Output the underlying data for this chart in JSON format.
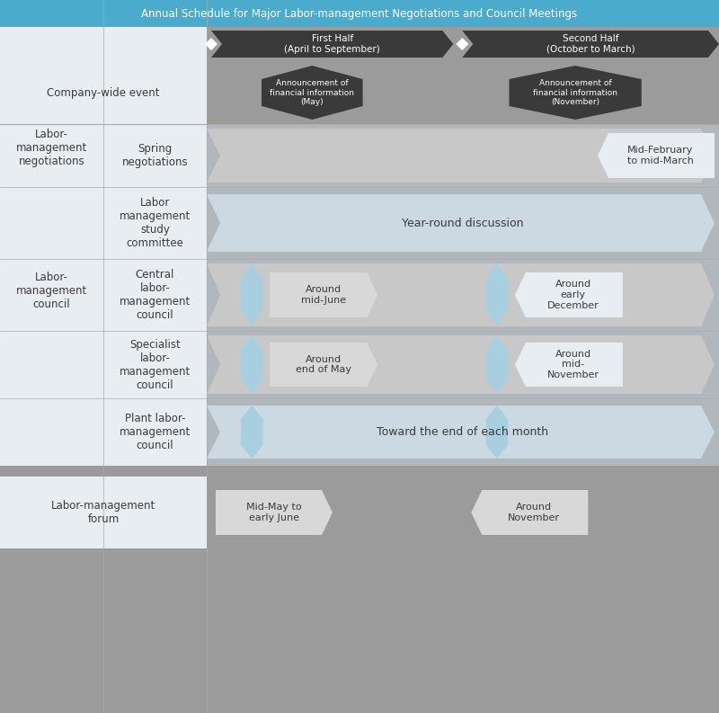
{
  "title": "Annual Schedule for Major Labor-management Negotiations and Council Meetings",
  "first_half": "First Half\n(April to September)",
  "second_half": "Second Half\n(October to March)",
  "colors": {
    "header_blue": "#4aabcc",
    "dark_arrow": "#3a3a3a",
    "mid_gray": "#9b9b9b",
    "light_gray": "#c8c8c8",
    "lighter_gray": "#d8d8d8",
    "lightest_bg": "#e8edf0",
    "light_blue": "#a8cfe0",
    "white": "#ffffff",
    "text_dark": "#3a3a3a",
    "diamond_white": "#ffffff",
    "row_bg_light": "#dde4ea",
    "row_bg_lighter": "#e8edf2"
  },
  "rows": [
    {
      "group": "Company-wide event",
      "sub": null,
      "type": "company_event",
      "first_label": "Announcement of\nfinancial information\n(May)",
      "second_label": "Announcement of\nfinancial information\n(November)"
    },
    {
      "group": "Labor-\nmanagement\nnegotiations",
      "sub": "Spring\nnegotiations",
      "type": "spring_neg",
      "label": "Mid-February\nto mid-March"
    },
    {
      "group": null,
      "sub": "Labor\nmanagement\nstudy\ncommittee",
      "type": "year_round",
      "label": "Year-round discussion"
    },
    {
      "group": "Labor-\nmanagement\ncouncil",
      "sub": "Central\nlabor-\nmanagement\ncouncil",
      "type": "central",
      "first_label": "Around\nmid-June",
      "second_label": "Around\nearly\nDecember"
    },
    {
      "group": null,
      "sub": "Specialist\nlabor-\nmanagement\ncouncil",
      "type": "specialist",
      "first_label": "Around\nend of May",
      "second_label": "Around\nmid-\nNovember"
    },
    {
      "group": null,
      "sub": "Plant labor-\nmanagement\ncouncil",
      "type": "plant",
      "label": "Toward the end of each month"
    },
    {
      "group": "Labor-management\nforum",
      "sub": null,
      "type": "forum",
      "first_label": "Mid-May to\nearly June",
      "second_label": "Around\nNovember"
    }
  ]
}
